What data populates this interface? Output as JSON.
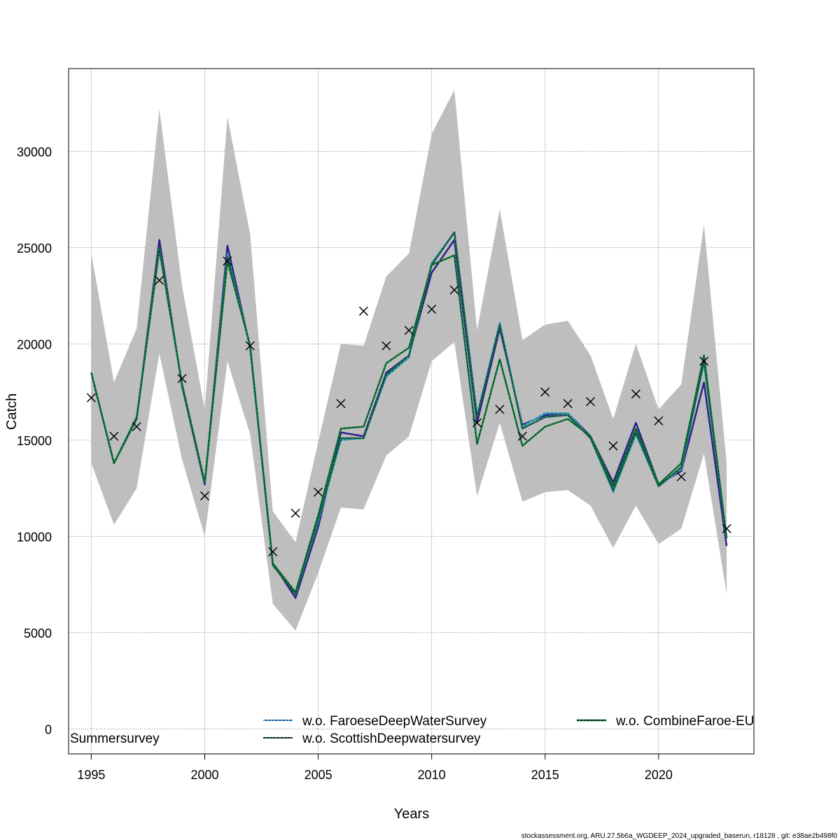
{
  "chart_data": {
    "type": "line",
    "title": "",
    "xlabel": "Years",
    "ylabel": "Catch",
    "xlim": [
      1994,
      2024.2
    ],
    "ylim": [
      -1300,
      34300
    ],
    "x_ticks": [
      1995,
      2000,
      2005,
      2010,
      2015,
      2020
    ],
    "y_ticks": [
      0,
      5000,
      10000,
      15000,
      20000,
      25000,
      30000
    ],
    "grid": true,
    "x": [
      1995,
      1996,
      1997,
      1998,
      1999,
      2000,
      2001,
      2002,
      2003,
      2004,
      2005,
      2006,
      2007,
      2008,
      2009,
      2010,
      2011,
      2012,
      2013,
      2014,
      2015,
      2016,
      2017,
      2018,
      2019,
      2020,
      2021,
      2022,
      2023
    ],
    "confidence_band": {
      "color": "#bebebe",
      "lower": [
        13800,
        10600,
        12500,
        19500,
        14000,
        10000,
        19100,
        15300,
        6500,
        5100,
        8100,
        11500,
        11400,
        14200,
        15200,
        19100,
        20100,
        12100,
        15900,
        11800,
        12300,
        12400,
        11600,
        9400,
        11600,
        9600,
        10400,
        14300,
        7000
      ],
      "upper": [
        24700,
        18000,
        20800,
        32200,
        23000,
        16600,
        31800,
        25700,
        11300,
        9700,
        14900,
        20000,
        19900,
        23500,
        24700,
        30900,
        33200,
        20700,
        27000,
        20200,
        21000,
        21200,
        19400,
        16100,
        20000,
        16600,
        17900,
        26200,
        13800
      ]
    },
    "series": [
      {
        "name": "",
        "color": "#2d1f8a",
        "dashed": false,
        "values": [
          18500,
          13800,
          16100,
          25400,
          17800,
          12700,
          25100,
          19800,
          8600,
          6800,
          10500,
          15400,
          15200,
          18500,
          19400,
          23700,
          25400,
          15900,
          20800,
          15800,
          16300,
          16400,
          15200,
          12800,
          15900,
          12700,
          13400,
          18000,
          9500
        ]
      },
      {
        "name": "w.o. FaroeseDeepWaterSurvey",
        "color": "#3bb3c8",
        "dashed": true,
        "values": [
          18500,
          13800,
          16100,
          25000,
          17900,
          12800,
          24600,
          19900,
          8600,
          7000,
          10800,
          15000,
          15100,
          18300,
          19300,
          24200,
          25800,
          16300,
          21100,
          15700,
          16400,
          16400,
          15100,
          12300,
          15300,
          12600,
          13500,
          19000,
          9900
        ]
      },
      {
        "name": "w.o. ScottishDeepwatersurvey",
        "color": "#1a6b56",
        "dashed": true,
        "values": [
          18500,
          13800,
          16100,
          25000,
          17900,
          12800,
          24500,
          19900,
          8500,
          7000,
          10900,
          15100,
          15100,
          18400,
          19400,
          24100,
          25800,
          16200,
          21000,
          15600,
          16200,
          16300,
          15100,
          12400,
          15400,
          12600,
          13600,
          19100,
          9900
        ]
      },
      {
        "name": "w.o. CombineFaroe-EU",
        "color": "#0e7a3a",
        "dashed": true,
        "values": [
          18500,
          13800,
          16200,
          24900,
          17900,
          12800,
          24300,
          19900,
          8600,
          7100,
          11100,
          15600,
          15700,
          19000,
          19800,
          24100,
          24600,
          14800,
          19200,
          14700,
          15700,
          16100,
          15200,
          12600,
          15600,
          12700,
          13800,
          19400,
          9900
        ]
      }
    ],
    "observations": {
      "name": "Summersurvey",
      "marker": "x",
      "values": [
        17200,
        15200,
        15700,
        23300,
        18200,
        12100,
        24300,
        19900,
        9200,
        11200,
        12300,
        16900,
        21700,
        19900,
        20700,
        21800,
        22800,
        15900,
        16600,
        15200,
        17500,
        16900,
        17000,
        14700,
        17400,
        16000,
        13100,
        19100,
        10400
      ]
    },
    "legend": {
      "placement": "bottom",
      "obs_label": "Summersurvey",
      "entries": [
        "w.o. FaroeseDeepWaterSurvey",
        "w.o. ScottishDeepwatersurvey",
        "w.o. CombineFaroe-EU"
      ]
    }
  },
  "footer": "stockassessment.org, ARU.27.5b6a_WGDEEP_2024_upgraded_baserun, r18128 , git: e38ae2b498f0"
}
